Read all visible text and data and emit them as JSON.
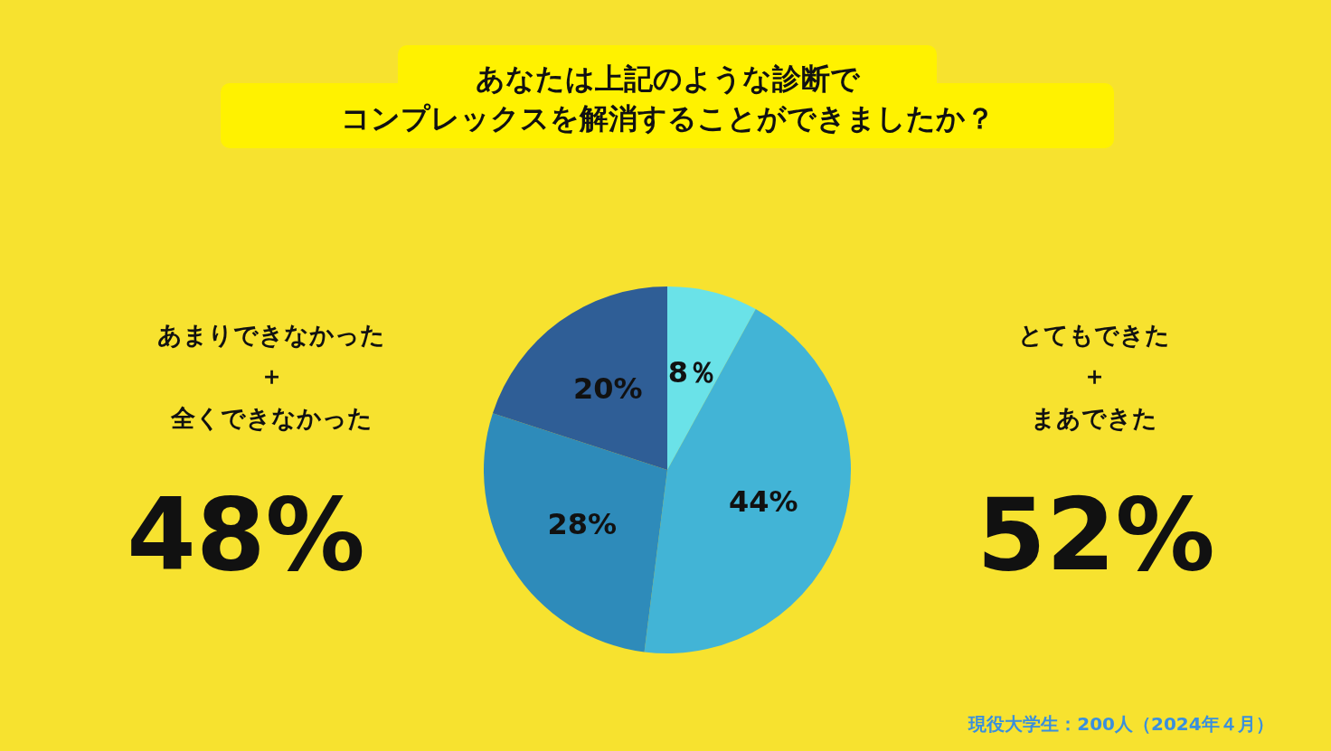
{
  "chart_data": {
    "type": "pie",
    "title": "あなたは上記のような診断で",
    "subtitle": "コンプレックスを解消することができましたか？",
    "categories": [
      null,
      null,
      null,
      null
    ],
    "values": [
      8,
      44,
      28,
      20
    ],
    "value_labels": [
      "8％",
      "44%",
      "28%",
      "20%"
    ],
    "colors": [
      "#6ae2e8",
      "#42b4d6",
      "#2e8bba",
      "#2f5e96"
    ],
    "annotations": [
      "あまりできなかった",
      "＋",
      "全くできなかった",
      "48%",
      "とてもできた",
      "＋",
      "まあできた",
      "52%",
      "現役大学生：200人（2024年４月）"
    ]
  }
}
